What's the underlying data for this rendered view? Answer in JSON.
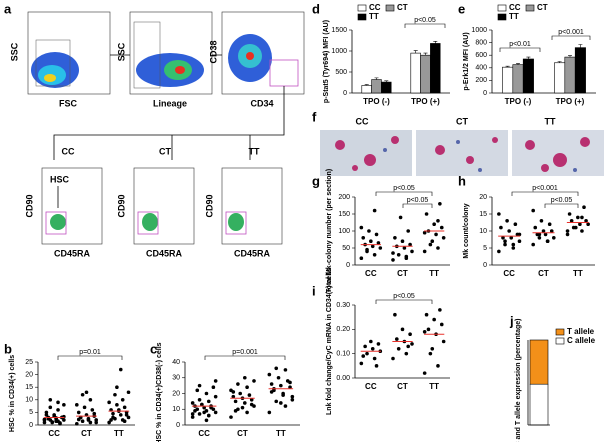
{
  "panel_letters": [
    "a",
    "b",
    "c",
    "d",
    "e",
    "f",
    "g",
    "h",
    "i",
    "j"
  ],
  "panel_a": {
    "top": [
      {
        "x": "FSC",
        "y": "SSC"
      },
      {
        "x": "Lineage",
        "y": "SSC"
      },
      {
        "x": "CD34",
        "y": "CD38"
      }
    ],
    "groups": [
      "CC",
      "CT",
      "TT"
    ],
    "gate": "HSC",
    "x": "CD45RA",
    "y": "CD90"
  },
  "panel_f": [
    "CC",
    "CT",
    "TT"
  ],
  "chart_data": [
    {
      "type": "dotplot",
      "ylabel": "HSC % in CD34(+) cells",
      "categories": [
        "CC",
        "CT",
        "TT"
      ],
      "ylim": [
        0,
        25
      ],
      "yticks": [
        0,
        5,
        10,
        15,
        20,
        25
      ],
      "annotations": [
        "p=0.01"
      ],
      "mean_color": "#e8302a",
      "points": [
        [
          1,
          1.5,
          2,
          2,
          2.5,
          3,
          3,
          3.5,
          4,
          0.5,
          1,
          2,
          6,
          7,
          8,
          1.5,
          2.5,
          3,
          4,
          5,
          0.8,
          1.2,
          2.2,
          9,
          10,
          3.3,
          2.8
        ],
        [
          0.5,
          1,
          1.5,
          2,
          2.5,
          3,
          3.5,
          4,
          5,
          6,
          7,
          8,
          10,
          12,
          1,
          2,
          3,
          4.5,
          13,
          2.2
        ],
        [
          1,
          2,
          2.5,
          3,
          4,
          4.5,
          5,
          5.5,
          6,
          7,
          8,
          9,
          10,
          12,
          13,
          22,
          3,
          4,
          6,
          2,
          1.5,
          15
        ]
      ],
      "means": [
        3,
        3.5,
        5.5
      ]
    },
    {
      "type": "dotplot",
      "ylabel": "HSC % in CD34(+)CD38(-) cells",
      "categories": [
        "CC",
        "CT",
        "TT"
      ],
      "ylim": [
        0,
        40
      ],
      "yticks": [
        0,
        10,
        20,
        30,
        40
      ],
      "annotations": [
        "p=0.001"
      ],
      "mean_color": "#e8302a",
      "points": [
        [
          5,
          6,
          7,
          8,
          9,
          10,
          10,
          11,
          12,
          12,
          13,
          14,
          15,
          16,
          18,
          20,
          22,
          24,
          8,
          9,
          11,
          13,
          7,
          6,
          25,
          28,
          3
        ],
        [
          5,
          8,
          10,
          12,
          14,
          15,
          16,
          17,
          18,
          19,
          20,
          22,
          24,
          26,
          28,
          30,
          9,
          13,
          11,
          21
        ],
        [
          8,
          12,
          15,
          18,
          20,
          22,
          24,
          25,
          26,
          28,
          30,
          32,
          35,
          36,
          16,
          19,
          23,
          27,
          14,
          21
        ]
      ],
      "means": [
        12,
        17,
        23
      ]
    },
    {
      "type": "bar",
      "ylabel": "p-Stat5 (Tyr694) MFI (AU)",
      "categories": [
        "TPO (-)",
        "TPO (+)"
      ],
      "ylim": [
        0,
        1500
      ],
      "yticks": [
        0,
        500,
        1000,
        1500
      ],
      "annotations": [
        "p<0.05"
      ],
      "series": [
        {
          "name": "CC",
          "color": "#ffffff",
          "values": [
            180,
            950
          ],
          "errors": [
            20,
            60
          ]
        },
        {
          "name": "CT",
          "color": "#999999",
          "values": [
            320,
            900
          ],
          "errors": [
            40,
            50
          ]
        },
        {
          "name": "TT",
          "color": "#000000",
          "values": [
            260,
            1180
          ],
          "errors": [
            30,
            50
          ]
        }
      ]
    },
    {
      "type": "bar",
      "ylabel": "p-Erk1/2 MFI (AU)",
      "categories": [
        "TPO (-)",
        "TPO (+)"
      ],
      "ylim": [
        0,
        1000
      ],
      "yticks": [
        0,
        200,
        400,
        600,
        800,
        1000
      ],
      "annotations": [
        "p<0.01",
        "p<0.001"
      ],
      "series": [
        {
          "name": "CC",
          "color": "#ffffff",
          "values": [
            410,
            480
          ],
          "errors": [
            15,
            20
          ]
        },
        {
          "name": "CT",
          "color": "#999999",
          "values": [
            450,
            570
          ],
          "errors": [
            20,
            25
          ]
        },
        {
          "name": "TT",
          "color": "#000000",
          "values": [
            540,
            720
          ],
          "errors": [
            30,
            50
          ]
        }
      ]
    },
    {
      "type": "dotplot",
      "ylabel": "Total Mk-colony number (per section)",
      "categories": [
        "CC",
        "CT",
        "TT"
      ],
      "ylim": [
        0,
        200
      ],
      "yticks": [
        0,
        50,
        100,
        150,
        200
      ],
      "annotations": [
        "p<0.05",
        "p<0.05"
      ],
      "mean_color": "#e8302a",
      "points": [
        [
          20,
          30,
          40,
          50,
          55,
          60,
          65,
          70,
          80,
          90,
          100,
          110,
          160,
          45
        ],
        [
          15,
          25,
          30,
          40,
          50,
          55,
          60,
          70,
          80,
          100,
          140,
          35,
          20
        ],
        [
          40,
          50,
          60,
          80,
          90,
          100,
          110,
          120,
          150,
          180,
          70,
          95,
          130
        ]
      ],
      "means": [
        60,
        55,
        100
      ]
    },
    {
      "type": "dotplot",
      "ylabel": "Mk count/colony",
      "categories": [
        "CC",
        "CT",
        "TT"
      ],
      "ylim": [
        0,
        20
      ],
      "yticks": [
        0,
        5,
        10,
        15,
        20
      ],
      "annotations": [
        "p<0.001",
        "p<0.05"
      ],
      "mean_color": "#e8302a",
      "points": [
        [
          4,
          5,
          6,
          7,
          8,
          8,
          9,
          10,
          11,
          12,
          13,
          15,
          6,
          7,
          9
        ],
        [
          6,
          7,
          8,
          8,
          9,
          9,
          10,
          10,
          11,
          12,
          13,
          16,
          7,
          9
        ],
        [
          9,
          10,
          11,
          12,
          12,
          13,
          13,
          14,
          15,
          17,
          11,
          10,
          14
        ]
      ],
      "means": [
        8.5,
        9.5,
        12.5
      ]
    },
    {
      "type": "dotplot",
      "ylabel": "Lnk fold change/CyC mRNA in CD34(+) cells",
      "categories": [
        "CC",
        "CT",
        "TT"
      ],
      "ylim": [
        0,
        0.3
      ],
      "yticks": [
        {
          "value": 0,
          "label": "0.00"
        },
        {
          "value": 0.1,
          "label": "0.10"
        },
        {
          "value": 0.2,
          "label": "0.20"
        },
        {
          "value": 0.3,
          "label": "0.30"
        }
      ],
      "annotations": [
        "p<0.05"
      ],
      "mean_color": "#e8302a",
      "points": [
        [
          0.06,
          0.08,
          0.1,
          0.11,
          0.12,
          0.13,
          0.14,
          0.15,
          0.09,
          0.05
        ],
        [
          0.08,
          0.1,
          0.12,
          0.14,
          0.15,
          0.16,
          0.18,
          0.2,
          0.26,
          0.13
        ],
        [
          0.02,
          0.05,
          0.1,
          0.15,
          0.18,
          0.2,
          0.22,
          0.24,
          0.26,
          0.28,
          0.12,
          0.19
        ]
      ],
      "means": [
        0.11,
        0.15,
        0.18
      ]
    },
    {
      "type": "stacked_bar",
      "ylabel": "C and T allele expression (percentage)",
      "ylim": [
        0,
        100
      ],
      "series": [
        {
          "name": "C allele",
          "color": "#ffffff",
          "values": [
            48
          ]
        },
        {
          "name": "T allele",
          "color": "#f39019",
          "values": [
            52
          ]
        }
      ]
    }
  ]
}
